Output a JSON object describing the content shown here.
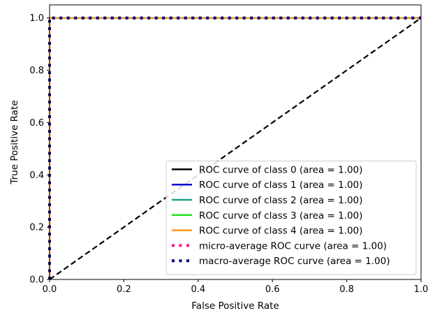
{
  "chart_data": {
    "type": "line",
    "title": "",
    "xlabel": "False Positive Rate",
    "ylabel": "True Positive Rate",
    "xlim": [
      0.0,
      1.0
    ],
    "ylim": [
      0.0,
      1.05
    ],
    "xticks": [
      "0.0",
      "0.2",
      "0.4",
      "0.6",
      "0.8",
      "1.0"
    ],
    "yticks": [
      "0.0",
      "0.2",
      "0.4",
      "0.6",
      "0.8",
      "1.0"
    ],
    "legend_position": "lower-right",
    "grid": false,
    "series": [
      {
        "name": "ROC curve of class 0 (area = 1.00)",
        "color": "#000000",
        "style": "solid",
        "x": [
          0.0,
          0.0,
          1.0
        ],
        "y": [
          0.0,
          1.0,
          1.0
        ]
      },
      {
        "name": "ROC curve of class 1 (area = 1.00)",
        "color": "#0000cc",
        "style": "solid",
        "x": [
          0.0,
          0.0,
          1.0
        ],
        "y": [
          0.0,
          1.0,
          1.0
        ]
      },
      {
        "name": "ROC curve of class 2 (area = 1.00)",
        "color": "#17a589",
        "style": "solid",
        "x": [
          0.0,
          0.0,
          1.0
        ],
        "y": [
          0.0,
          1.0,
          1.0
        ]
      },
      {
        "name": "ROC curve of class 3 (area = 1.00)",
        "color": "#22e022",
        "style": "solid",
        "x": [
          0.0,
          0.0,
          1.0
        ],
        "y": [
          0.0,
          1.0,
          1.0
        ]
      },
      {
        "name": "ROC curve of class 4 (area = 1.00)",
        "color": "#ff9a1a",
        "style": "solid",
        "x": [
          0.0,
          0.0,
          1.0
        ],
        "y": [
          0.0,
          1.0,
          1.0
        ]
      },
      {
        "name": "micro-average ROC curve (area = 1.00)",
        "color": "#ff1493",
        "style": "dotted",
        "x": [
          0.0,
          0.0,
          1.0
        ],
        "y": [
          0.0,
          1.0,
          1.0
        ]
      },
      {
        "name": "macro-average ROC curve (area = 1.00)",
        "color": "#000080",
        "style": "dotted",
        "x": [
          0.0,
          0.0,
          1.0
        ],
        "y": [
          0.0,
          1.0,
          1.0
        ]
      }
    ],
    "reference_line": {
      "color": "#000000",
      "style": "dashed",
      "x": [
        0.0,
        1.0
      ],
      "y": [
        0.0,
        1.0
      ]
    }
  }
}
